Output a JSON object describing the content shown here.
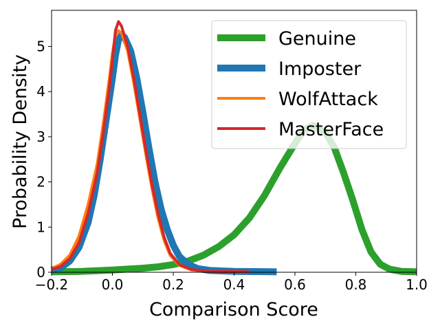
{
  "chart_data": {
    "type": "line",
    "xlabel": "Comparison Score",
    "ylabel": "Probability Density",
    "xlim": [
      -0.2,
      1.0
    ],
    "ylim": [
      0,
      5.8
    ],
    "xticks": [
      -0.2,
      0.0,
      0.2,
      0.4,
      0.6,
      0.8,
      1.0
    ],
    "xtick_labels": [
      "−0.2",
      "0.0",
      "0.2",
      "0.4",
      "0.6",
      "0.8",
      "1.0"
    ],
    "yticks": [
      0,
      1,
      2,
      3,
      4,
      5
    ],
    "ytick_labels": [
      "0",
      "1",
      "2",
      "3",
      "4",
      "5"
    ],
    "grid": false,
    "legend_position": "top-right",
    "series": [
      {
        "name": "Genuine",
        "color": "#2ca02c",
        "line_weight": "thick",
        "points": [
          [
            -0.2,
            0.01
          ],
          [
            -0.1,
            0.02
          ],
          [
            0.0,
            0.05
          ],
          [
            0.05,
            0.07
          ],
          [
            0.1,
            0.09
          ],
          [
            0.15,
            0.12
          ],
          [
            0.2,
            0.17
          ],
          [
            0.25,
            0.25
          ],
          [
            0.3,
            0.38
          ],
          [
            0.35,
            0.57
          ],
          [
            0.4,
            0.83
          ],
          [
            0.45,
            1.2
          ],
          [
            0.5,
            1.7
          ],
          [
            0.55,
            2.3
          ],
          [
            0.6,
            2.85
          ],
          [
            0.63,
            3.15
          ],
          [
            0.66,
            3.25
          ],
          [
            0.7,
            3.1
          ],
          [
            0.73,
            2.75
          ],
          [
            0.76,
            2.2
          ],
          [
            0.79,
            1.6
          ],
          [
            0.82,
            0.95
          ],
          [
            0.85,
            0.45
          ],
          [
            0.88,
            0.18
          ],
          [
            0.91,
            0.07
          ],
          [
            0.95,
            0.02
          ],
          [
            1.0,
            0.01
          ]
        ]
      },
      {
        "name": "Imposter",
        "color": "#1f77b4",
        "line_weight": "thick",
        "points": [
          [
            -0.2,
            0.05
          ],
          [
            -0.17,
            0.1
          ],
          [
            -0.14,
            0.25
          ],
          [
            -0.11,
            0.55
          ],
          [
            -0.08,
            1.1
          ],
          [
            -0.06,
            1.7
          ],
          [
            -0.04,
            2.5
          ],
          [
            -0.02,
            3.4
          ],
          [
            0.0,
            4.3
          ],
          [
            0.01,
            4.8
          ],
          [
            0.02,
            5.15
          ],
          [
            0.03,
            5.25
          ],
          [
            0.04,
            5.2
          ],
          [
            0.06,
            4.9
          ],
          [
            0.08,
            4.3
          ],
          [
            0.1,
            3.55
          ],
          [
            0.12,
            2.75
          ],
          [
            0.14,
            2.0
          ],
          [
            0.16,
            1.4
          ],
          [
            0.18,
            0.95
          ],
          [
            0.2,
            0.6
          ],
          [
            0.22,
            0.35
          ],
          [
            0.25,
            0.17
          ],
          [
            0.28,
            0.08
          ],
          [
            0.32,
            0.04
          ],
          [
            0.4,
            0.02
          ],
          [
            0.54,
            0.01
          ]
        ]
      },
      {
        "name": "WolfAttack",
        "color": "#ff7f0e",
        "line_weight": "thin",
        "points": [
          [
            -0.2,
            0.08
          ],
          [
            -0.17,
            0.18
          ],
          [
            -0.14,
            0.38
          ],
          [
            -0.11,
            0.8
          ],
          [
            -0.08,
            1.5
          ],
          [
            -0.05,
            2.4
          ],
          [
            -0.03,
            3.3
          ],
          [
            -0.01,
            4.3
          ],
          [
            0.0,
            4.85
          ],
          [
            0.01,
            5.25
          ],
          [
            0.02,
            5.35
          ],
          [
            0.03,
            5.3
          ],
          [
            0.05,
            4.9
          ],
          [
            0.07,
            4.2
          ],
          [
            0.09,
            3.4
          ],
          [
            0.11,
            2.6
          ],
          [
            0.13,
            1.85
          ],
          [
            0.15,
            1.2
          ],
          [
            0.17,
            0.7
          ],
          [
            0.19,
            0.37
          ],
          [
            0.22,
            0.15
          ],
          [
            0.26,
            0.05
          ],
          [
            0.32,
            0.02
          ],
          [
            0.45,
            0.01
          ]
        ]
      },
      {
        "name": "MasterFace",
        "color": "#d62728",
        "line_weight": "thin",
        "points": [
          [
            -0.2,
            0.06
          ],
          [
            -0.17,
            0.13
          ],
          [
            -0.14,
            0.3
          ],
          [
            -0.11,
            0.65
          ],
          [
            -0.08,
            1.3
          ],
          [
            -0.05,
            2.2
          ],
          [
            -0.03,
            3.1
          ],
          [
            -0.01,
            4.1
          ],
          [
            0.0,
            4.7
          ],
          [
            0.01,
            5.35
          ],
          [
            0.02,
            5.55
          ],
          [
            0.03,
            5.45
          ],
          [
            0.05,
            5.0
          ],
          [
            0.07,
            4.3
          ],
          [
            0.09,
            3.5
          ],
          [
            0.11,
            2.7
          ],
          [
            0.13,
            1.95
          ],
          [
            0.15,
            1.3
          ],
          [
            0.17,
            0.78
          ],
          [
            0.19,
            0.42
          ],
          [
            0.22,
            0.17
          ],
          [
            0.26,
            0.06
          ],
          [
            0.32,
            0.02
          ],
          [
            0.45,
            0.01
          ]
        ]
      }
    ]
  }
}
